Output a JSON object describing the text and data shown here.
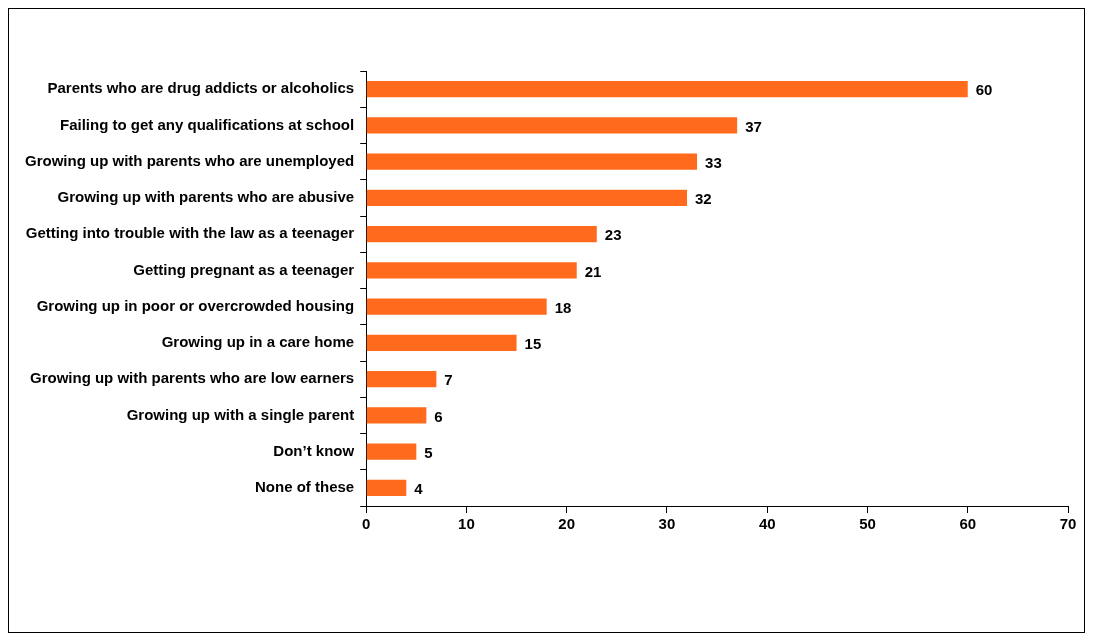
{
  "chart_data": {
    "type": "bar",
    "orientation": "horizontal",
    "categories": [
      "Parents who are drug addicts or alcoholics",
      "Failing to get any qualifications at school",
      "Growing up with parents who are unemployed",
      "Growing up with parents who are abusive",
      "Getting into trouble with the law as a teenager",
      "Getting pregnant as a teenager",
      "Growing up in poor or overcrowded housing",
      "Growing up in a care home",
      "Growing up with parents who are low earners",
      "Growing up with a single parent",
      "Don’t know",
      "None of these"
    ],
    "values": [
      60,
      37,
      33,
      32,
      23,
      21,
      18,
      15,
      7,
      6,
      5,
      4
    ],
    "color": "#ff6a1c",
    "xlim": [
      0,
      70
    ],
    "xticks": [
      0,
      10,
      20,
      30,
      40,
      50,
      60,
      70
    ],
    "data_labels": true,
    "grid": false,
    "legend": false
  }
}
